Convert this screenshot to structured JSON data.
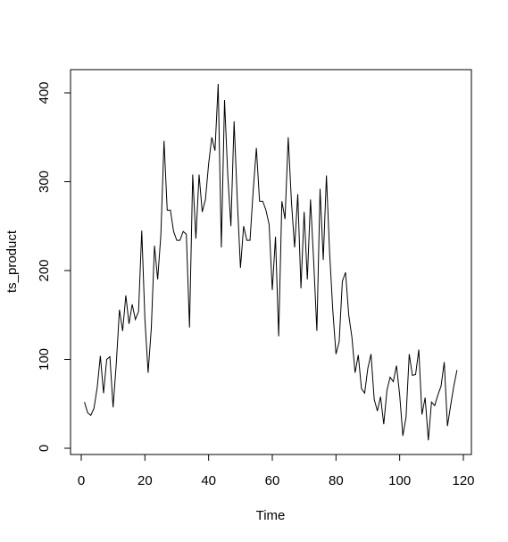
{
  "chart_data": {
    "type": "line",
    "title": "",
    "xlabel": "Time",
    "ylabel": "ts_product",
    "xlim": [
      1,
      118
    ],
    "ylim": [
      10,
      410
    ],
    "xticks": [
      0,
      20,
      40,
      60,
      80,
      100,
      120
    ],
    "yticks": [
      0,
      100,
      200,
      300,
      400
    ],
    "grid": false,
    "legend": "none",
    "line_color": "#000000",
    "x": [
      1,
      2,
      3,
      4,
      5,
      6,
      7,
      8,
      9,
      10,
      11,
      12,
      13,
      14,
      15,
      16,
      17,
      18,
      19,
      20,
      21,
      22,
      23,
      24,
      25,
      26,
      27,
      28,
      29,
      30,
      31,
      32,
      33,
      34,
      35,
      36,
      37,
      38,
      39,
      40,
      41,
      42,
      43,
      44,
      45,
      46,
      47,
      48,
      49,
      50,
      51,
      52,
      53,
      54,
      55,
      56,
      57,
      58,
      59,
      60,
      61,
      62,
      63,
      64,
      65,
      66,
      67,
      68,
      69,
      70,
      71,
      72,
      73,
      74,
      75,
      76,
      77,
      78,
      79,
      80,
      81,
      82,
      83,
      84,
      85,
      86,
      87,
      88,
      89,
      90,
      91,
      92,
      93,
      94,
      95,
      96,
      97,
      98,
      99,
      100,
      101,
      102,
      103,
      104,
      105,
      106,
      107,
      108,
      109,
      110,
      111,
      112,
      113,
      114,
      115,
      116,
      117,
      118
    ],
    "values": [
      52,
      40,
      37,
      45,
      68,
      104,
      62,
      100,
      103,
      46,
      95,
      156,
      132,
      172,
      140,
      162,
      145,
      154,
      245,
      145,
      85,
      135,
      228,
      190,
      240,
      346,
      268,
      268,
      244,
      234,
      234,
      244,
      241,
      136,
      308,
      236,
      308,
      266,
      280,
      320,
      350,
      335,
      410,
      226,
      392,
      308,
      250,
      368,
      280,
      203,
      250,
      234,
      234,
      290,
      338,
      278,
      278,
      268,
      252,
      178,
      238,
      126,
      278,
      258,
      350,
      278,
      226,
      286,
      180,
      266,
      190,
      280,
      210,
      132,
      292,
      212,
      307,
      220,
      155,
      106,
      120,
      188,
      198,
      150,
      125,
      85,
      105,
      67,
      62,
      90,
      106,
      55,
      42,
      58,
      27,
      65,
      80,
      75,
      93,
      60,
      14,
      35,
      106,
      82,
      83,
      111,
      38,
      57,
      9,
      52,
      48,
      60,
      70,
      97,
      25,
      48,
      70,
      88
    ]
  }
}
